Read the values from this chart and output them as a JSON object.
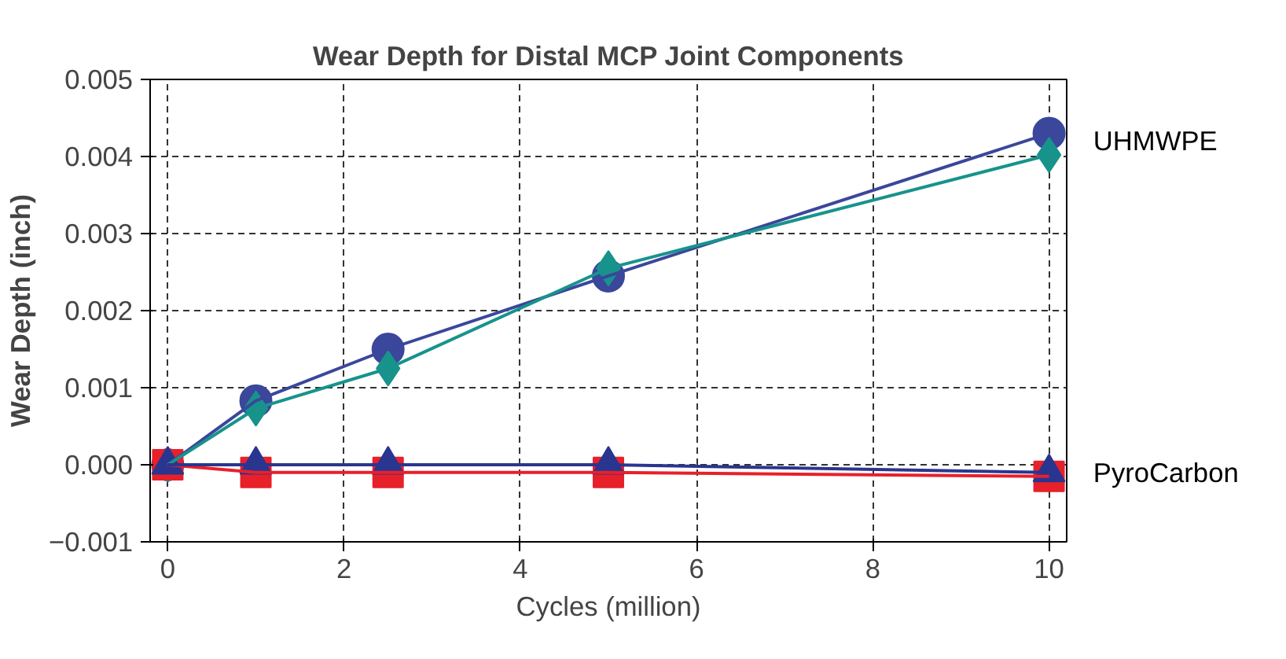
{
  "chart_data": {
    "type": "line",
    "title": "Wear Depth for Distal MCP Joint Components",
    "xlabel": "Cycles (million)",
    "ylabel": "Wear Depth (inch)",
    "x": [
      0,
      1,
      2.5,
      5,
      10
    ],
    "series": [
      {
        "color": "#3a479b",
        "values": [
          0,
          0.00083,
          0.0015,
          0.00245,
          0.0043
        ],
        "marker": "circle"
      },
      {
        "color": "#17938c",
        "values": [
          0,
          0.00073,
          0.00125,
          0.00255,
          0.00402
        ],
        "marker": "diamond"
      },
      {
        "color": "#e8202a",
        "values": [
          0,
          -0.0001,
          -0.0001,
          -0.0001,
          -0.00015
        ],
        "marker": "square"
      },
      {
        "color": "#2a3590",
        "values": [
          0,
          0,
          0,
          0,
          -0.0001
        ],
        "marker": "triangle"
      }
    ],
    "xlim": [
      -0.2,
      10.2
    ],
    "ylim": [
      -0.001,
      0.005
    ],
    "xticks": [
      0,
      2,
      4,
      6,
      8,
      10
    ],
    "yticks": [
      {
        "value": -0.001,
        "label": "−0.001"
      },
      {
        "value": 0,
        "label": "0.000"
      },
      {
        "value": 0.001,
        "label": "0.001"
      },
      {
        "value": 0.002,
        "label": "0.002"
      },
      {
        "value": 0.003,
        "label": "0.003"
      },
      {
        "value": 0.004,
        "label": "0.004"
      },
      {
        "value": 0.005,
        "label": "0.005"
      }
    ],
    "grid": true,
    "line_style": "solid",
    "annotations": [
      {
        "text": "UHMWPE",
        "x": 10,
        "y": 0.0042
      },
      {
        "text": "PyroCarbon",
        "x": 10,
        "y": -0.0001
      }
    ]
  }
}
